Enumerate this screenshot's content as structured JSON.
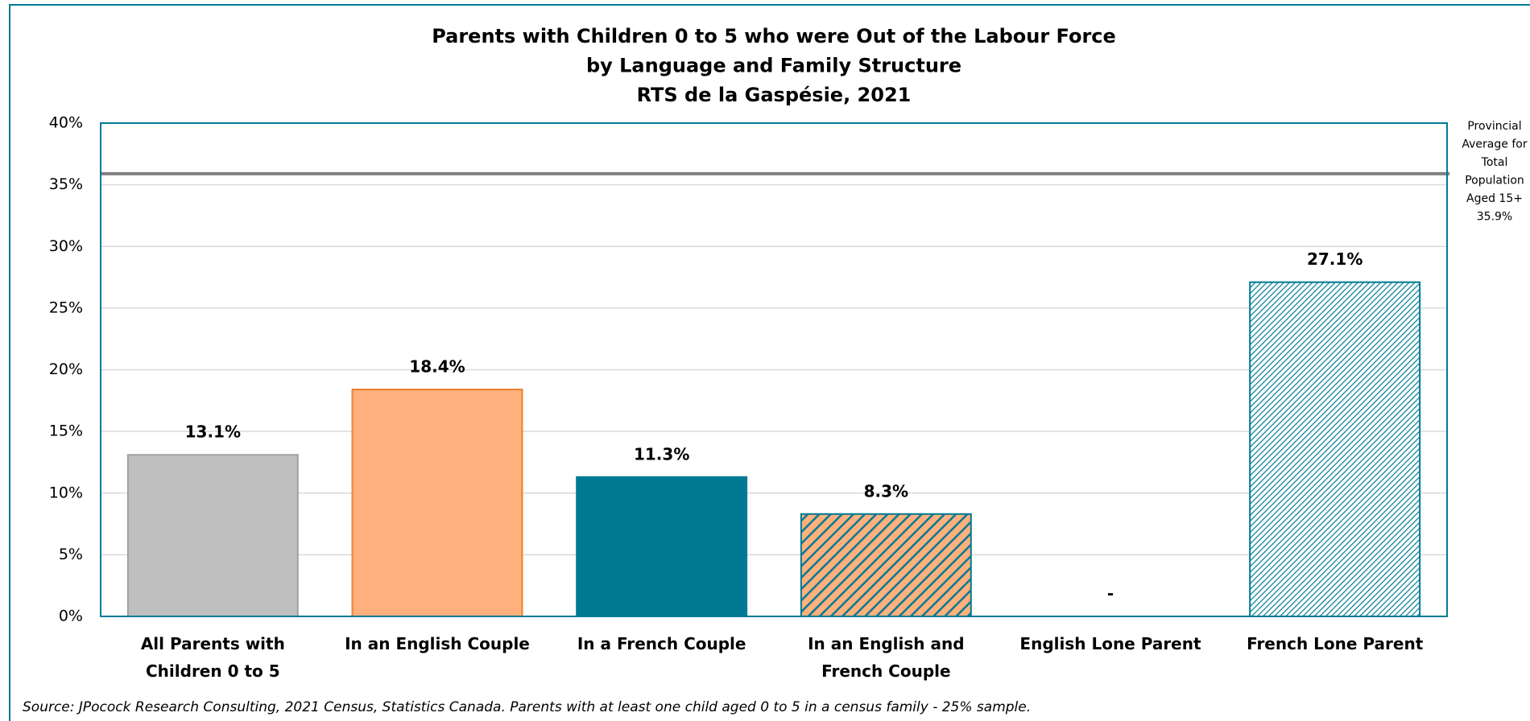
{
  "chart_data": {
    "type": "bar",
    "title_lines": [
      "Parents with Children 0 to 5 who were Out of the Labour Force",
      "by Language and Family Structure",
      "RTS de la Gaspésie, 2021"
    ],
    "categories": [
      "All Parents with Children 0 to 5",
      "In an English Couple",
      "In a French Couple",
      "In an English and French Couple",
      "English Lone Parent",
      "French Lone Parent"
    ],
    "values": [
      13.1,
      18.4,
      11.3,
      8.3,
      null,
      27.1
    ],
    "value_labels": [
      "13.1%",
      "18.4%",
      "11.3%",
      "8.3%",
      "-",
      "27.1%"
    ],
    "bar_styles": [
      {
        "fill": "#bfbfbf",
        "stroke": "#a0a0a0"
      },
      {
        "fill": "#ffb07c",
        "stroke": "#f0802c"
      },
      {
        "fill": "#007a94",
        "stroke": "#007a94"
      },
      {
        "fill": "#ffb07c",
        "stroke": "#007a94",
        "hatch": {
          "color": "#007a94",
          "spacing": 10,
          "width": 5
        }
      },
      {
        "fill": "#ffffff",
        "stroke": "#007a94"
      },
      {
        "fill": "#ffffff",
        "stroke": "#007a94",
        "hatch": {
          "color": "#007a94",
          "spacing": 5,
          "width": 2.4
        }
      }
    ],
    "ylim": [
      0,
      40
    ],
    "yticks": [
      {
        "value": 0,
        "label": "0%"
      },
      {
        "value": 5,
        "label": "5%"
      },
      {
        "value": 10,
        "label": "10%"
      },
      {
        "value": 15,
        "label": "15%"
      },
      {
        "value": 20,
        "label": "20%"
      },
      {
        "value": 25,
        "label": "25%"
      },
      {
        "value": 30,
        "label": "30%"
      },
      {
        "value": 35,
        "label": "35%"
      },
      {
        "value": 40,
        "label": "40%"
      }
    ],
    "grid": true,
    "reference_line": {
      "value": 35.9,
      "color": "#808080",
      "label_lines": [
        "Provincial",
        "Average for",
        "Total",
        "Population",
        "Aged 15+"
      ],
      "value_label": "35.9%"
    },
    "source": "Source: JPocock Research Consulting, 2021 Census, Statistics Canada. Parents with at least one child aged 0 to 5 in a census family - 25% sample."
  }
}
